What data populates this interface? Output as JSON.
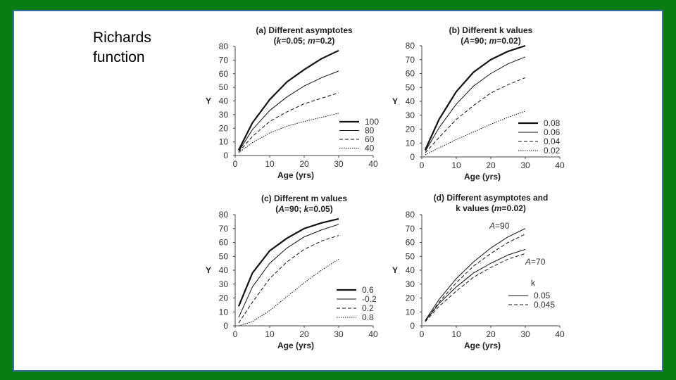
{
  "slide": {
    "title_line1": "Richards",
    "title_line2": "function",
    "frame_color": "#0a7d12",
    "border_color": "#3a6fa6"
  },
  "chart_data": [
    {
      "type": "line",
      "title_line1": "(a)  Different asymptotes",
      "title_line2": "(k=0.05; m=0.2)",
      "xlabel": "Age (yrs)",
      "ylabel": "Y",
      "xlim": [
        0,
        40
      ],
      "ylim": [
        0,
        80
      ],
      "xticks": [
        "0",
        "10",
        "20",
        "30",
        "40"
      ],
      "yticks": [
        "0",
        "10",
        "20",
        "30",
        "40",
        "50",
        "60",
        "70",
        "80"
      ],
      "legend_title": "",
      "x": [
        1,
        5,
        10,
        15,
        20,
        25,
        30
      ],
      "series": [
        {
          "name": "100",
          "style": "thick",
          "values": [
            4,
            24,
            41,
            54,
            63,
            71,
            77
          ]
        },
        {
          "name": "80",
          "style": "solid",
          "values": [
            3,
            19,
            33,
            43,
            51,
            57,
            62
          ]
        },
        {
          "name": "60",
          "style": "dashed",
          "values": [
            2.5,
            14,
            25,
            32,
            38,
            42,
            46
          ]
        },
        {
          "name": "40",
          "style": "dotted",
          "values": [
            2,
            9.5,
            16.5,
            21.5,
            25,
            28,
            31
          ]
        }
      ]
    },
    {
      "type": "line",
      "title_line1": "(b)  Different k values",
      "title_line2": "(A=90; m=0.02)",
      "xlabel": "Age (yrs)",
      "ylabel": "Y",
      "xlim": [
        0,
        40
      ],
      "ylim": [
        0,
        80
      ],
      "xticks": [
        "0",
        "10",
        "20",
        "30",
        "40"
      ],
      "yticks": [
        "0",
        "10",
        "20",
        "30",
        "40",
        "50",
        "60",
        "70",
        "80"
      ],
      "legend_title": "",
      "x": [
        1,
        5,
        10,
        15,
        20,
        25,
        30
      ],
      "series": [
        {
          "name": "0.08",
          "style": "thick",
          "values": [
            5,
            27,
            47,
            61,
            70,
            76,
            80
          ]
        },
        {
          "name": "0.06",
          "style": "solid",
          "values": [
            4,
            21,
            38,
            51,
            60,
            67,
            72
          ]
        },
        {
          "name": "0.04",
          "style": "dashed",
          "values": [
            3,
            14,
            27,
            37,
            46,
            52,
            57
          ]
        },
        {
          "name": "0.02",
          "style": "dotted",
          "values": [
            1.5,
            6.5,
            12.5,
            18,
            23.5,
            28.5,
            33
          ]
        }
      ]
    },
    {
      "type": "line",
      "title_line1": "(c)  Different m values",
      "title_line2": "(A=90; k=0.05)",
      "xlabel": "Age (yrs)",
      "ylabel": "Y",
      "xlim": [
        0,
        40
      ],
      "ylim": [
        0,
        80
      ],
      "xticks": [
        "0",
        "10",
        "20",
        "30",
        "40"
      ],
      "yticks": [
        "0",
        "10",
        "20",
        "30",
        "40",
        "50",
        "60",
        "70",
        "80"
      ],
      "legend_title": "",
      "x": [
        1,
        5,
        10,
        15,
        20,
        25,
        30
      ],
      "series": [
        {
          "name": "0.6",
          "style": "thick",
          "values": [
            14,
            38,
            54,
            63,
            70,
            74,
            77
          ]
        },
        {
          "name": "-0.2",
          "style": "solid",
          "values": [
            6,
            28,
            45,
            56,
            64,
            69,
            73
          ]
        },
        {
          "name": "0.2",
          "style": "dashed",
          "values": [
            2,
            17,
            34,
            46,
            55,
            61,
            65
          ]
        },
        {
          "name": "0.8",
          "style": "dotted",
          "values": [
            0,
            3,
            11,
            21,
            31,
            40,
            48
          ]
        }
      ]
    },
    {
      "type": "line",
      "title_line1": "(d)  Different asymptotes and",
      "title_line2": "k values (m=0.02)",
      "xlabel": "Age (yrs)",
      "ylabel": "Y",
      "xlim": [
        0,
        40
      ],
      "ylim": [
        0,
        80
      ],
      "xticks": [
        "0",
        "10",
        "20",
        "30",
        "40"
      ],
      "yticks": [
        "0",
        "10",
        "20",
        "30",
        "40",
        "50",
        "60",
        "70",
        "80"
      ],
      "legend_title": "k",
      "annotations": [
        "A=90",
        "A=70"
      ],
      "x": [
        1,
        5,
        10,
        15,
        20,
        25,
        30
      ],
      "series": [
        {
          "name": "0.05",
          "style": "solid",
          "values": [
            4,
            19,
            34,
            46,
            56,
            64,
            70
          ]
        },
        {
          "name": "0.045",
          "style": "dashed",
          "values": [
            3.5,
            17,
            31,
            43,
            52,
            60,
            66
          ]
        },
        {
          "name": "A=70, k=0.05",
          "style": "solid",
          "legend": false,
          "values": [
            3.5,
            16,
            28,
            38,
            45,
            51,
            55
          ]
        },
        {
          "name": "A=70, k=0.045",
          "style": "dashed",
          "legend": false,
          "values": [
            3,
            14,
            25,
            35,
            42,
            48,
            52
          ]
        }
      ]
    }
  ]
}
